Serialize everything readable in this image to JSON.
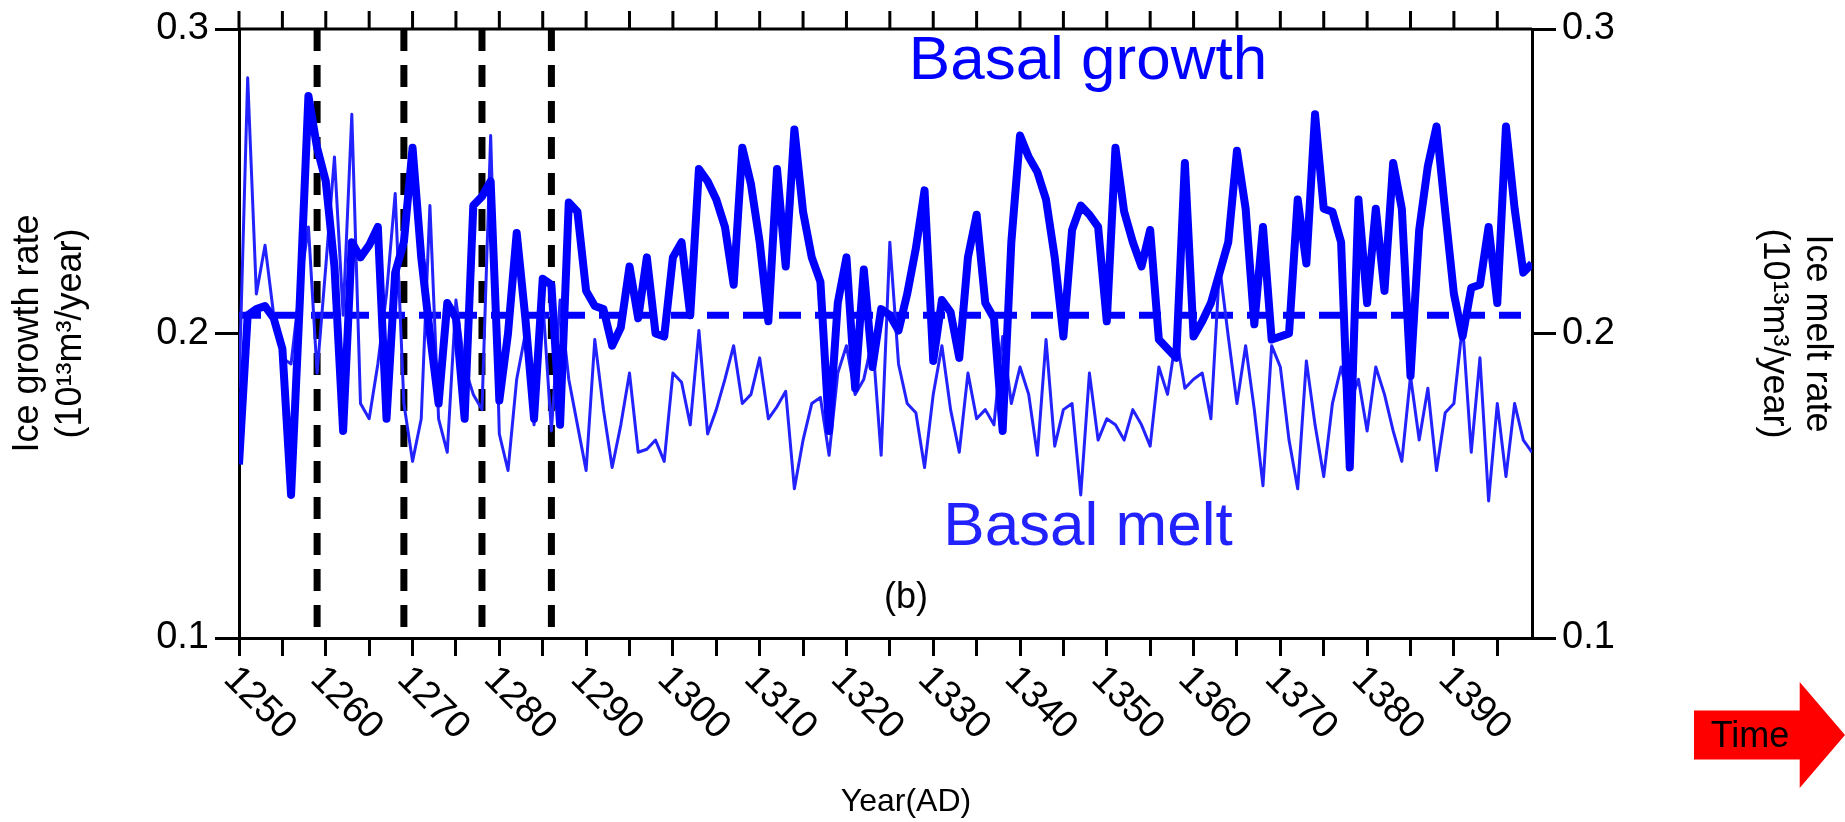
{
  "chart_data": {
    "type": "line",
    "xlabel": "Year(AD)",
    "ylabel": "Ice growth rate\n(10¹³m³/year)",
    "y2label": "Ice melt rate\n(10¹³m³/year)",
    "annotations": [
      "(b)",
      "Time"
    ],
    "x": [
      1250,
      1251,
      1252,
      1253,
      1254,
      1255,
      1256,
      1257,
      1258,
      1259,
      1260,
      1261,
      1262,
      1263,
      1264,
      1265,
      1266,
      1267,
      1268,
      1269,
      1270,
      1271,
      1272,
      1273,
      1274,
      1275,
      1276,
      1277,
      1278,
      1279,
      1280,
      1281,
      1282,
      1283,
      1284,
      1285,
      1286,
      1287,
      1288,
      1289,
      1290,
      1291,
      1292,
      1293,
      1294,
      1295,
      1296,
      1297,
      1298,
      1299,
      1300,
      1301,
      1302,
      1303,
      1304,
      1305,
      1306,
      1307,
      1308,
      1309,
      1310,
      1311,
      1312,
      1313,
      1314,
      1315,
      1316,
      1317,
      1318,
      1319,
      1320,
      1321,
      1322,
      1323,
      1324,
      1325,
      1326,
      1327,
      1328,
      1329,
      1330,
      1331,
      1332,
      1333,
      1334,
      1335,
      1336,
      1337,
      1338,
      1339,
      1340,
      1341,
      1342,
      1343,
      1344,
      1345,
      1346,
      1347,
      1348,
      1349,
      1350,
      1351,
      1352,
      1353,
      1354,
      1355,
      1356,
      1357,
      1358,
      1359,
      1360,
      1361,
      1362,
      1363,
      1364,
      1365,
      1366,
      1367,
      1368,
      1369,
      1370,
      1371,
      1372,
      1373,
      1374,
      1375,
      1376,
      1377,
      1378,
      1379,
      1380,
      1381,
      1382,
      1383,
      1384,
      1385,
      1386,
      1387,
      1388,
      1389,
      1390,
      1391,
      1392,
      1393,
      1394,
      1395,
      1396,
      1397,
      1398,
      1399
    ],
    "series": [
      {
        "name": "Basal growth",
        "color": "#0000ff",
        "values": [
          0.157,
          0.206,
          0.208,
          0.209,
          0.205,
          0.195,
          0.147,
          0.21,
          0.278,
          0.261,
          0.25,
          0.222,
          0.168,
          0.23,
          0.225,
          0.229,
          0.235,
          0.172,
          0.22,
          0.23,
          0.261,
          0.225,
          0.2,
          0.177,
          0.21,
          0.205,
          0.172,
          0.242,
          0.245,
          0.25,
          0.178,
          0.2,
          0.233,
          0.205,
          0.172,
          0.218,
          0.216,
          0.17,
          0.243,
          0.24,
          0.214,
          0.209,
          0.208,
          0.196,
          0.202,
          0.222,
          0.205,
          0.225,
          0.2,
          0.199,
          0.225,
          0.23,
          0.206,
          0.254,
          0.25,
          0.244,
          0.235,
          0.216,
          0.261,
          0.249,
          0.23,
          0.204,
          0.254,
          0.222,
          0.267,
          0.24,
          0.225,
          0.217,
          0.168,
          0.21,
          0.225,
          0.182,
          0.221,
          0.189,
          0.208,
          0.206,
          0.201,
          0.213,
          0.228,
          0.247,
          0.191,
          0.211,
          0.207,
          0.192,
          0.225,
          0.239,
          0.21,
          0.205,
          0.168,
          0.23,
          0.265,
          0.258,
          0.253,
          0.244,
          0.225,
          0.199,
          0.234,
          0.242,
          0.239,
          0.235,
          0.204,
          0.261,
          0.24,
          0.23,
          0.222,
          0.234,
          0.198,
          0.195,
          0.192,
          0.256,
          0.199,
          0.204,
          0.21,
          0.22,
          0.23,
          0.26,
          0.241,
          0.203,
          0.235,
          0.198,
          0.199,
          0.2,
          0.244,
          0.223,
          0.272,
          0.241,
          0.24,
          0.23,
          0.156,
          0.244,
          0.21,
          0.241,
          0.214,
          0.256,
          0.241,
          0.186,
          0.234,
          0.255,
          0.268,
          0.24,
          0.213,
          0.199,
          0.215,
          0.216,
          0.235,
          0.21,
          0.268,
          0.241,
          0.22,
          0.223
        ]
      },
      {
        "name": "Basal melt",
        "color": "#2222ff",
        "axis": "y2",
        "values": [
          0.182,
          0.284,
          0.213,
          0.229,
          0.206,
          0.192,
          0.19,
          0.215,
          0.235,
          0.187,
          0.222,
          0.258,
          0.206,
          0.272,
          0.177,
          0.172,
          0.19,
          0.213,
          0.246,
          0.177,
          0.158,
          0.172,
          0.242,
          0.172,
          0.161,
          0.211,
          0.189,
          0.18,
          0.175,
          0.265,
          0.167,
          0.155,
          0.185,
          0.2,
          0.17,
          0.211,
          0.168,
          0.211,
          0.185,
          0.17,
          0.155,
          0.198,
          0.175,
          0.156,
          0.17,
          0.187,
          0.161,
          0.162,
          0.165,
          0.158,
          0.187,
          0.184,
          0.17,
          0.201,
          0.167,
          0.175,
          0.185,
          0.196,
          0.177,
          0.18,
          0.192,
          0.172,
          0.176,
          0.181,
          0.149,
          0.165,
          0.177,
          0.179,
          0.16,
          0.187,
          0.196,
          0.18,
          0.185,
          0.198,
          0.16,
          0.23,
          0.19,
          0.177,
          0.174,
          0.156,
          0.18,
          0.196,
          0.175,
          0.161,
          0.187,
          0.172,
          0.175,
          0.17,
          0.199,
          0.177,
          0.189,
          0.18,
          0.16,
          0.198,
          0.163,
          0.175,
          0.177,
          0.147,
          0.187,
          0.165,
          0.172,
          0.17,
          0.165,
          0.175,
          0.17,
          0.163,
          0.189,
          0.18,
          0.199,
          0.182,
          0.185,
          0.187,
          0.172,
          0.222,
          0.199,
          0.177,
          0.196,
          0.175,
          0.15,
          0.196,
          0.189,
          0.165,
          0.149,
          0.191,
          0.17,
          0.153,
          0.177,
          0.189,
          0.177,
          0.185,
          0.168,
          0.189,
          0.18,
          0.168,
          0.158,
          0.186,
          0.165,
          0.182,
          0.155,
          0.174,
          0.177,
          0.203,
          0.161,
          0.192,
          0.145,
          0.177,
          0.153,
          0.177,
          0.165,
          0.161
        ]
      }
    ],
    "xlim": [
      1250,
      1399
    ],
    "xticks": [
      1250,
      {
        "value": 1255,
        "label": null
      },
      1260,
      {
        "value": 1265,
        "label": null
      },
      1270,
      {
        "value": 1275,
        "label": null
      },
      1280,
      {
        "value": 1285,
        "label": null
      },
      1290,
      {
        "value": 1295,
        "label": null
      },
      1300,
      {
        "value": 1305,
        "label": null
      },
      1310,
      {
        "value": 1315,
        "label": null
      },
      1320,
      {
        "value": 1325,
        "label": null
      },
      1330,
      {
        "value": 1335,
        "label": null
      },
      1340,
      {
        "value": 1345,
        "label": null
      },
      1350,
      {
        "value": 1355,
        "label": null
      },
      1360,
      {
        "value": 1365,
        "label": null
      },
      1370,
      {
        "value": 1375,
        "label": null
      },
      1380,
      {
        "value": 1385,
        "label": null
      },
      1390,
      {
        "value": 1395,
        "label": null
      }
    ],
    "ylim": [
      0.1,
      0.3
    ],
    "yticks": [
      0.1,
      0.2,
      0.3
    ],
    "y2lim": [
      0.1,
      0.3
    ],
    "y2ticks": [
      0.1,
      0.2,
      0.3
    ],
    "ref_lines": [
      {
        "axis": "x",
        "value": 1259,
        "color": "#000000",
        "line_style": "dashed"
      },
      {
        "axis": "x",
        "value": 1269,
        "color": "#000000",
        "line_style": "dashed"
      },
      {
        "axis": "x",
        "value": 1278,
        "color": "#000000",
        "line_style": "dashed"
      },
      {
        "axis": "x",
        "value": 1286,
        "color": "#000000",
        "line_style": "dashed"
      },
      {
        "axis": "y",
        "value": 0.206,
        "color": "#0000ff",
        "line_style": "dashed"
      }
    ],
    "grid": false,
    "line_style": "solid",
    "marker": "none"
  }
}
